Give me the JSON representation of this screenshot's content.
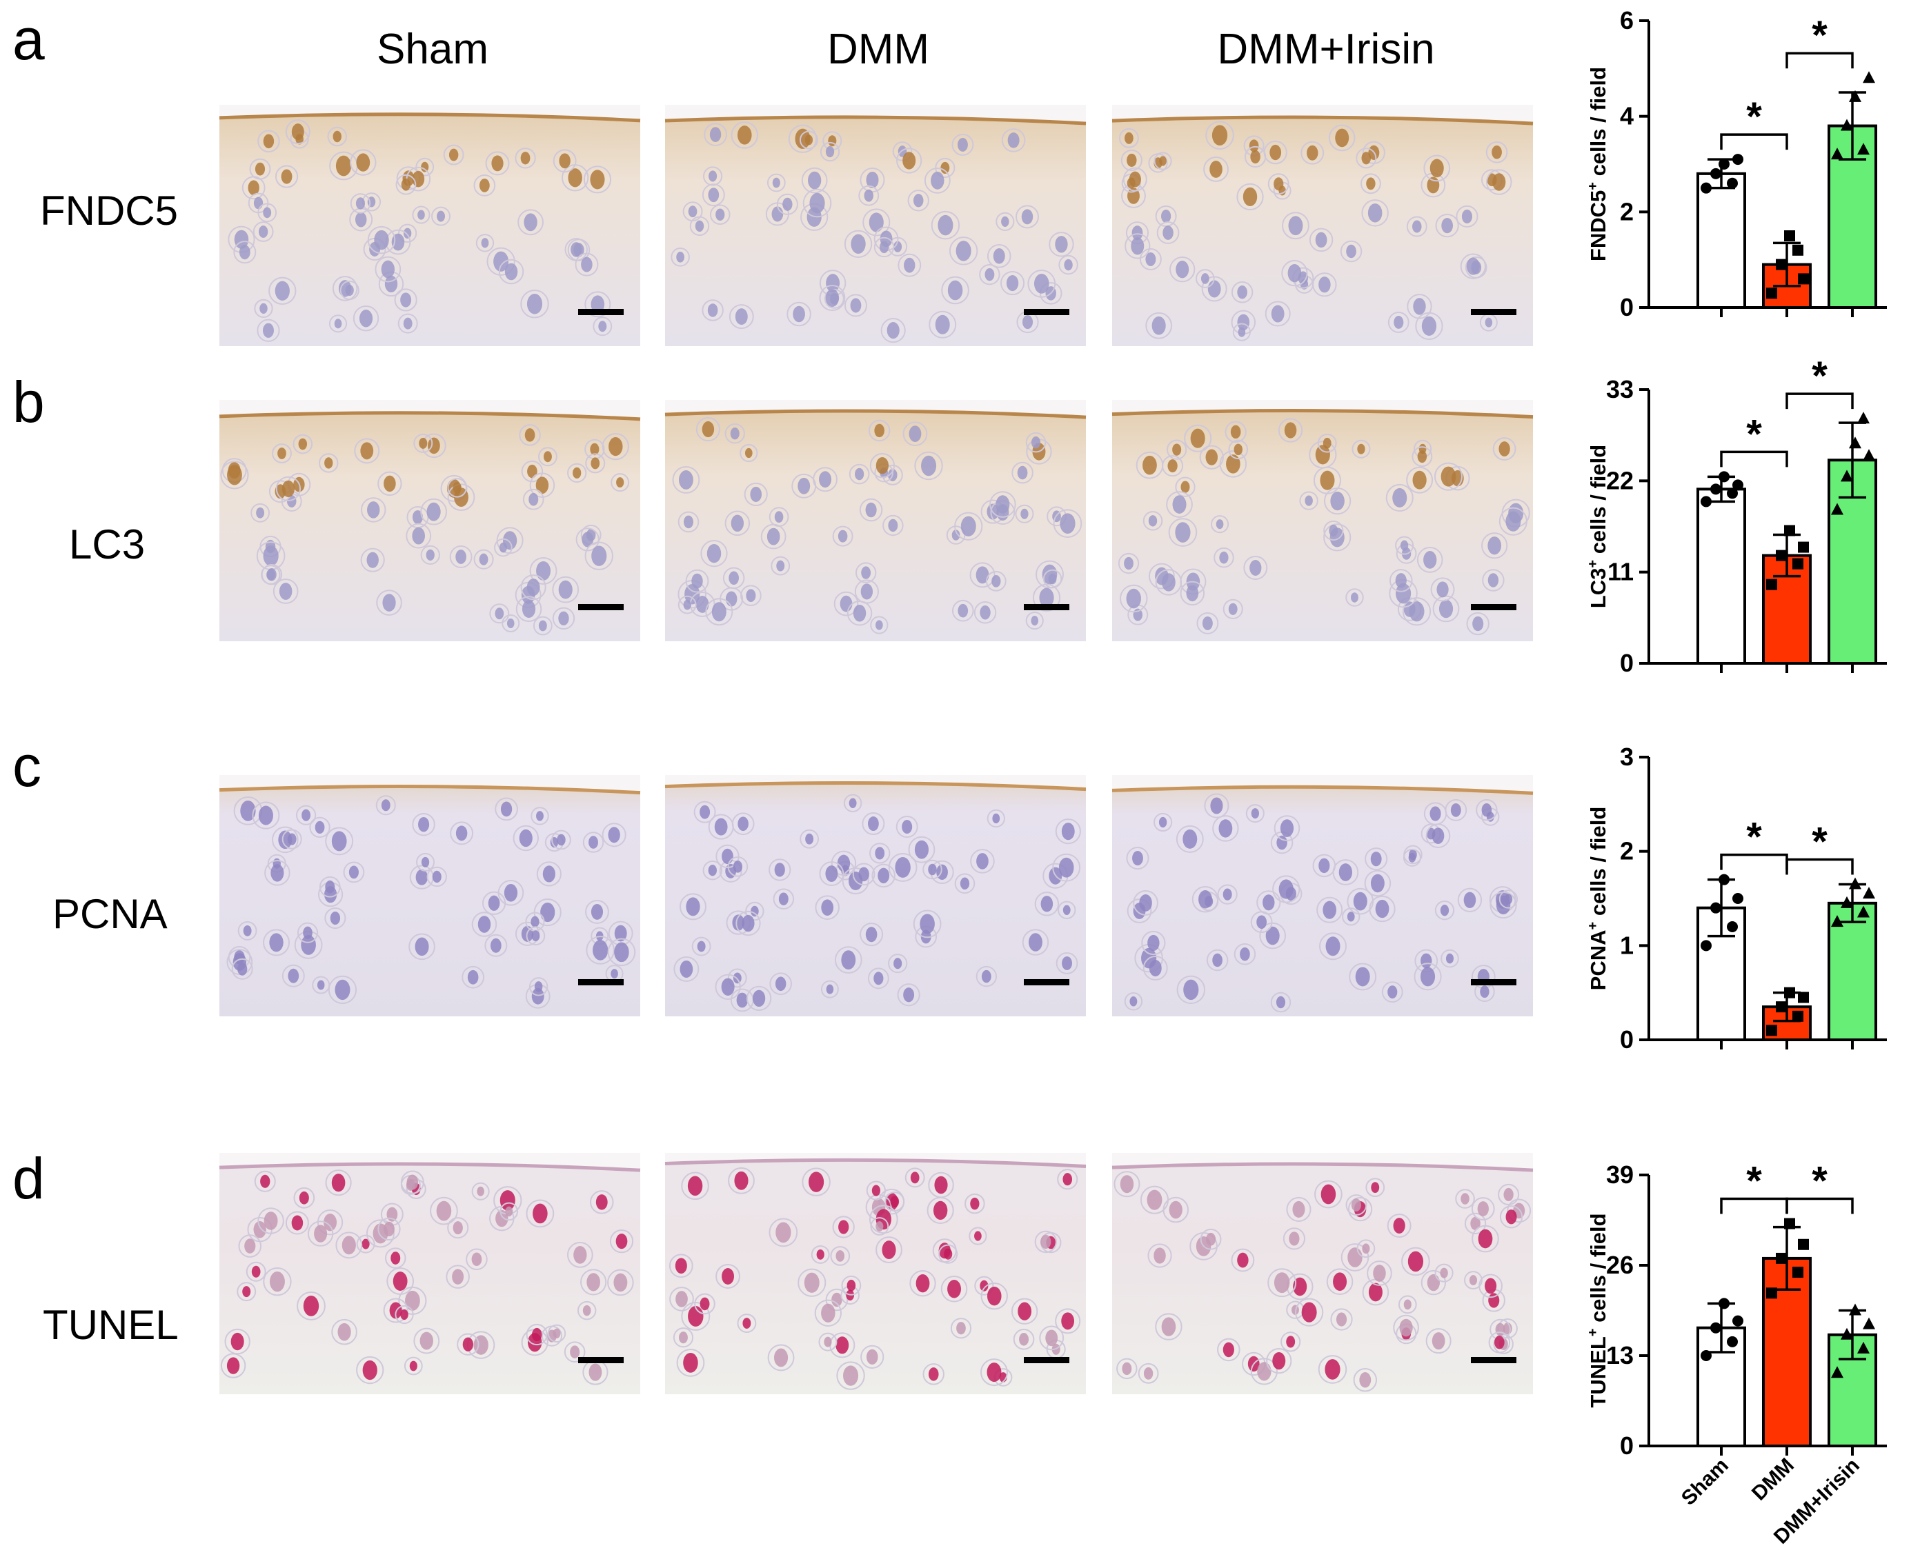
{
  "columns": [
    "Sham",
    "DMM",
    "DMM+Irisin"
  ],
  "panels": [
    {
      "letter": "a",
      "stain": "FNDC5",
      "tissue": "brown"
    },
    {
      "letter": "b",
      "stain": "LC3",
      "tissue": "brown"
    },
    {
      "letter": "c",
      "stain": "PCNA",
      "tissue": "blue"
    },
    {
      "letter": "d",
      "stain": "TUNEL",
      "tissue": "red"
    }
  ],
  "colors": {
    "Sham": "#ffffff",
    "DMM": "#ff3300",
    "DMM+Irisin": "#66ee77",
    "stroke": "#000000"
  },
  "chart_data": [
    {
      "type": "bar",
      "categories": [
        "Sham",
        "DMM",
        "DMM+Irisin"
      ],
      "ylabel_main": "FNDC5",
      "ylabel_sup": "+",
      "ylabel_rest": " cells / field",
      "ylim": [
        0,
        6
      ],
      "yticks": [
        "0",
        "2",
        "4",
        "6"
      ],
      "values": [
        2.8,
        0.9,
        3.8
      ],
      "errors": [
        0.3,
        0.45,
        0.7
      ],
      "points": [
        [
          2.5,
          2.8,
          3.0,
          2.6,
          3.1
        ],
        [
          0.3,
          0.9,
          1.5,
          1.2,
          0.6
        ],
        [
          3.2,
          3.8,
          4.4,
          3.3,
          4.8
        ]
      ],
      "significance": [
        {
          "from": 0,
          "to": 1,
          "label": "*"
        },
        {
          "from": 1,
          "to": 2,
          "label": "*"
        }
      ]
    },
    {
      "type": "bar",
      "categories": [
        "Sham",
        "DMM",
        "DMM+Irisin"
      ],
      "ylabel_main": "LC3",
      "ylabel_sup": "+",
      "ylabel_rest": " cells / field",
      "ylim": [
        0,
        33
      ],
      "yticks": [
        "0",
        "11",
        "22",
        "33"
      ],
      "values": [
        21,
        13,
        24.5
      ],
      "errors": [
        1.5,
        2.5,
        4.5
      ],
      "points": [
        [
          19.5,
          21.0,
          22.5,
          20.5,
          21.5
        ],
        [
          9.5,
          13.0,
          16.0,
          12.0,
          14.0
        ],
        [
          18.5,
          22.5,
          26.5,
          29.5,
          25.0
        ]
      ],
      "significance": [
        {
          "from": 0,
          "to": 1,
          "label": "*"
        },
        {
          "from": 1,
          "to": 2,
          "label": "*"
        }
      ]
    },
    {
      "type": "bar",
      "categories": [
        "Sham",
        "DMM",
        "DMM+Irisin"
      ],
      "ylabel_main": "PCNA",
      "ylabel_sup": "+",
      "ylabel_rest": " cells / field",
      "ylim": [
        0,
        3
      ],
      "yticks": [
        "0",
        "1",
        "2",
        "3"
      ],
      "values": [
        1.4,
        0.35,
        1.45
      ],
      "errors": [
        0.3,
        0.15,
        0.2
      ],
      "points": [
        [
          1.0,
          1.4,
          1.7,
          1.2,
          1.5
        ],
        [
          0.1,
          0.35,
          0.5,
          0.25,
          0.45
        ],
        [
          1.25,
          1.45,
          1.65,
          1.35,
          1.55
        ]
      ],
      "significance": [
        {
          "from": 0,
          "to": 1,
          "label": "*"
        },
        {
          "from": 1,
          "to": 2,
          "label": "*"
        }
      ]
    },
    {
      "type": "bar",
      "categories": [
        "Sham",
        "DMM",
        "DMM+Irisin"
      ],
      "ylabel_main": "TUNEL",
      "ylabel_sup": "+",
      "ylabel_rest": " cells / field",
      "ylim": [
        0,
        39
      ],
      "yticks": [
        "0",
        "13",
        "26",
        "39"
      ],
      "values": [
        17,
        27,
        16
      ],
      "errors": [
        3.5,
        4.5,
        3.5
      ],
      "points": [
        [
          13.0,
          17.0,
          20.5,
          15.0,
          18.0
        ],
        [
          22.0,
          27.0,
          32.0,
          25.0,
          29.0
        ],
        [
          10.5,
          16.0,
          19.5,
          14.0,
          17.5
        ]
      ],
      "significance": [
        {
          "from": 0,
          "to": 1,
          "label": "*"
        },
        {
          "from": 1,
          "to": 2,
          "label": "*"
        }
      ]
    }
  ]
}
